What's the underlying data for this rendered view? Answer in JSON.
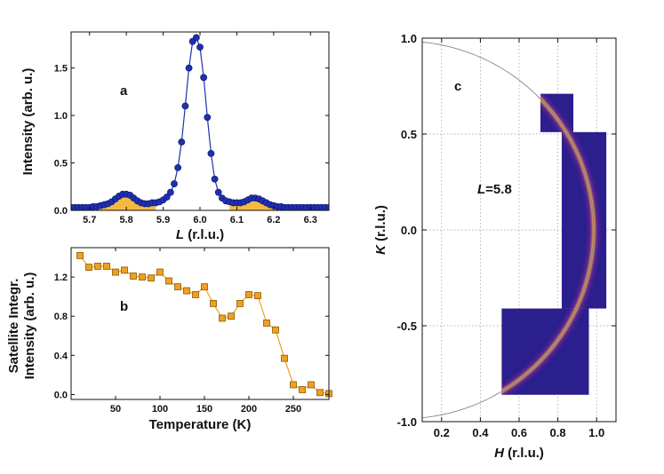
{
  "chart_data": [
    {
      "type": "line",
      "panel_label": "a",
      "xlabel_italic": "L",
      "xlabel_rest": " (r.l.u.)",
      "ylabel": "Intensity (arb. u.)",
      "xlim": [
        5.65,
        6.35
      ],
      "ylim": [
        0,
        1.88
      ],
      "xticks": [
        "5.7",
        "5.8",
        "5.9",
        "6.0",
        "6.1",
        "6.2",
        "6.3"
      ],
      "xtick_values": [
        5.7,
        5.8,
        5.9,
        6.0,
        6.1,
        6.2,
        6.3
      ],
      "yticks": [
        "0.0",
        "0.5",
        "1.0",
        "1.5"
      ],
      "ytick_values": [
        0,
        0.5,
        1.0,
        1.5
      ],
      "colors": {
        "series": "#1f2fb0",
        "fill": "#f5b942"
      },
      "series": [
        {
          "x": [
            5.65,
            5.66,
            5.67,
            5.68,
            5.69,
            5.7,
            5.71,
            5.72,
            5.73,
            5.74,
            5.75,
            5.76,
            5.77,
            5.78,
            5.79,
            5.8,
            5.81,
            5.82,
            5.83,
            5.84,
            5.85,
            5.86,
            5.87,
            5.88,
            5.89,
            5.9,
            5.91,
            5.92,
            5.93,
            5.94,
            5.95,
            5.96,
            5.97,
            5.98,
            5.99,
            6.0,
            6.01,
            6.02,
            6.03,
            6.04,
            6.05,
            6.06,
            6.07,
            6.08,
            6.09,
            6.1,
            6.11,
            6.12,
            6.13,
            6.14,
            6.15,
            6.16,
            6.17,
            6.18,
            6.19,
            6.2,
            6.21,
            6.22,
            6.23,
            6.24,
            6.25,
            6.26,
            6.27,
            6.28,
            6.29,
            6.3,
            6.31,
            6.32,
            6.33,
            6.34,
            6.35
          ],
          "y": [
            0.03,
            0.03,
            0.03,
            0.03,
            0.03,
            0.03,
            0.04,
            0.04,
            0.05,
            0.06,
            0.07,
            0.09,
            0.12,
            0.15,
            0.17,
            0.17,
            0.16,
            0.13,
            0.1,
            0.08,
            0.07,
            0.07,
            0.08,
            0.08,
            0.09,
            0.11,
            0.14,
            0.19,
            0.28,
            0.45,
            0.72,
            1.1,
            1.5,
            1.78,
            1.82,
            1.72,
            1.4,
            0.98,
            0.6,
            0.33,
            0.19,
            0.13,
            0.1,
            0.09,
            0.08,
            0.08,
            0.08,
            0.09,
            0.11,
            0.13,
            0.13,
            0.12,
            0.1,
            0.08,
            0.06,
            0.05,
            0.04,
            0.04,
            0.03,
            0.03,
            0.03,
            0.03,
            0.03,
            0.03,
            0.03,
            0.03,
            0.03,
            0.03,
            0.03,
            0.03,
            0.03
          ]
        }
      ],
      "shaded_satellites": [
        {
          "x": [
            5.72,
            5.74,
            5.76,
            5.78,
            5.8,
            5.82,
            5.84,
            5.86,
            5.88
          ],
          "y": [
            0.04,
            0.06,
            0.09,
            0.15,
            0.17,
            0.13,
            0.08,
            0.07,
            0.06
          ]
        },
        {
          "x": [
            6.08,
            6.1,
            6.12,
            6.14,
            6.16,
            6.18,
            6.2,
            6.22,
            6.24
          ],
          "y": [
            0.05,
            0.07,
            0.09,
            0.13,
            0.12,
            0.08,
            0.05,
            0.04,
            0.03
          ]
        }
      ]
    },
    {
      "type": "line",
      "panel_label": "b",
      "xlabel": "Temperature (K)",
      "ylabel_line1": "Satellite Integr.",
      "ylabel_line2": "Intensity (arb. u.)",
      "xlim": [
        0,
        290
      ],
      "ylim": [
        -0.05,
        1.5
      ],
      "xticks": [
        "50",
        "100",
        "150",
        "200",
        "250"
      ],
      "xtick_values": [
        50,
        100,
        150,
        200,
        250
      ],
      "yticks": [
        "0.0",
        "0.4",
        "0.8",
        "1.2"
      ],
      "ytick_values": [
        0,
        0.4,
        0.8,
        1.2
      ],
      "colors": {
        "series": "#f0a020",
        "edge": "#8a5a00"
      },
      "series": [
        {
          "x": [
            10,
            20,
            30,
            40,
            50,
            60,
            70,
            80,
            90,
            100,
            110,
            120,
            130,
            140,
            150,
            160,
            170,
            180,
            190,
            200,
            210,
            220,
            230,
            240,
            250,
            260,
            270,
            280,
            290
          ],
          "y": [
            1.42,
            1.3,
            1.31,
            1.31,
            1.25,
            1.27,
            1.21,
            1.2,
            1.19,
            1.25,
            1.16,
            1.1,
            1.06,
            1.02,
            1.1,
            0.93,
            0.78,
            0.8,
            0.93,
            1.02,
            1.01,
            0.73,
            0.66,
            0.37,
            0.1,
            0.05,
            0.1,
            0.02,
            0.01
          ]
        }
      ]
    },
    {
      "type": "heatmap",
      "panel_label": "c",
      "annotation_italic": "L",
      "annotation_rest": "=5.8",
      "xlabel_italic": "H",
      "xlabel_rest": " (r.l.u.)",
      "ylabel_italic": "K",
      "ylabel_rest": " (r.l.u.)",
      "xlim": [
        0.1,
        1.1
      ],
      "ylim": [
        -1.0,
        1.0
      ],
      "xticks": [
        "0.2",
        "0.4",
        "0.6",
        "0.8",
        "1.0"
      ],
      "xtick_values": [
        0.2,
        0.4,
        0.6,
        0.8,
        1.0
      ],
      "yticks": [
        "1.0",
        "0.5",
        "0.0",
        "-0.5",
        "-1.0"
      ],
      "ytick_values": [
        1.0,
        0.5,
        0.0,
        -0.5,
        -1.0
      ],
      "grid": true,
      "ring_radius": 0.985,
      "ring_center": [
        0,
        0
      ],
      "colors": {
        "background": "#2a1f8c",
        "ring": "#ffd040",
        "ring_glow": "#c0359a"
      },
      "data_regions": [
        {
          "h": [
            0.71,
            0.88
          ],
          "k": [
            0.51,
            0.71
          ]
        },
        {
          "h": [
            0.82,
            1.05
          ],
          "k": [
            -0.41,
            0.51
          ]
        },
        {
          "h": [
            0.51,
            0.96
          ],
          "k": [
            -0.86,
            -0.41
          ]
        }
      ]
    }
  ]
}
